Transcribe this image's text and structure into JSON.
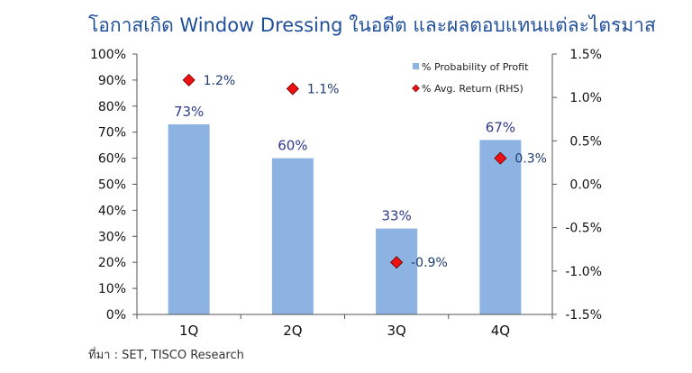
{
  "chart_data": {
    "type": "bar",
    "title": "โอกาสเกิด Window Dressing ในอดีต และผลตอบแทนแต่ละไตรมาส",
    "categories": [
      "1Q",
      "2Q",
      "3Q",
      "4Q"
    ],
    "series": [
      {
        "name": "% Probability of Profit",
        "type": "bar",
        "axis": "left",
        "values": [
          73,
          60,
          33,
          67
        ],
        "labels": [
          "73%",
          "60%",
          "33%",
          "67%"
        ],
        "color": "#8db3e2"
      },
      {
        "name": "% Avg. Return (RHS)",
        "type": "scatter",
        "axis": "right",
        "values": [
          1.2,
          1.1,
          -0.9,
          0.3
        ],
        "labels": [
          "1.2%",
          "1.1%",
          "-0.9%",
          "0.3%"
        ],
        "color": "#ee1111"
      }
    ],
    "ylim_left": [
      0,
      100
    ],
    "ylim_right": [
      -1.5,
      1.5
    ],
    "yticks_left": [
      "0%",
      "10%",
      "20%",
      "30%",
      "40%",
      "50%",
      "60%",
      "70%",
      "80%",
      "90%",
      "100%"
    ],
    "yticks_right": [
      "-1.5%",
      "-1.0%",
      "-0.5%",
      "0.0%",
      "0.5%",
      "1.0%",
      "1.5%"
    ],
    "legend_position": "top-right",
    "grid": false
  },
  "source_note": "ที่มา : SET, TISCO Research"
}
